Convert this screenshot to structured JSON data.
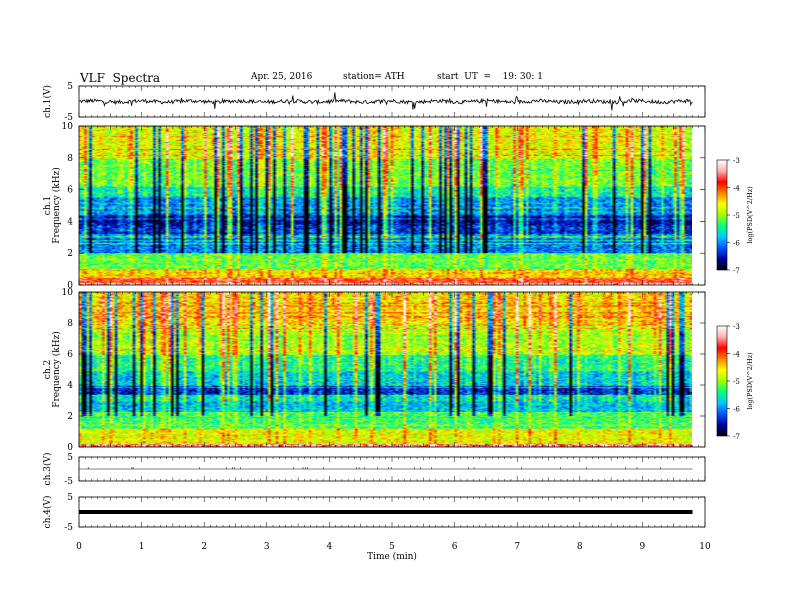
{
  "header": {
    "title": "VLF  Spectra",
    "date": "Apr. 25, 2016",
    "station": "station= ATH",
    "start": "start  UT  =    19: 30: 1"
  },
  "chart_data": [
    {
      "type": "line",
      "panel": "ch1-waveform",
      "ylabel": "ch.1(V)",
      "ytick_labels": [
        "5",
        "-5"
      ],
      "ylim": [
        -5,
        5
      ],
      "xlim": [
        0,
        10
      ],
      "baseline": 0,
      "x_end": 9.8
    },
    {
      "type": "heatmap",
      "panel": "ch1-spectrogram",
      "ylabel_top": "ch.1",
      "ylabel": "Frequency  (kHz)",
      "ytick_labels": [
        "0",
        "2",
        "4",
        "6",
        "8",
        "10"
      ],
      "ylim": [
        0,
        10
      ],
      "xlim": [
        0,
        10
      ],
      "x_end": 9.8,
      "colorbar": {
        "label": "log(PSD(V^2/Hz)",
        "tick_labels": [
          "-3",
          "-4",
          "-5",
          "-6",
          "-7"
        ],
        "range": [
          -7,
          -3
        ],
        "colors": [
          "#000000",
          "#0000a0",
          "#0050ff",
          "#00c8ff",
          "#00ff80",
          "#a0ff00",
          "#ffff00",
          "#ff8000",
          "#ff0000",
          "#ffb0b0",
          "#ffffff"
        ]
      },
      "bands": [
        {
          "from": 0,
          "to": 0.15,
          "level": -3.4
        },
        {
          "from": 0.15,
          "to": 0.5,
          "level": -4.0
        },
        {
          "from": 0.5,
          "to": 1.0,
          "level": -4.6
        },
        {
          "from": 1.0,
          "to": 2.0,
          "level": -5.3
        },
        {
          "from": 2.0,
          "to": 3.2,
          "level": -6.2
        },
        {
          "from": 3.2,
          "to": 3.8,
          "level": -6.6
        },
        {
          "from": 3.8,
          "to": 4.4,
          "level": -6.8
        },
        {
          "from": 4.4,
          "to": 5.6,
          "level": -6.3
        },
        {
          "from": 5.6,
          "to": 6.2,
          "level": -5.8
        },
        {
          "from": 6.2,
          "to": 8.0,
          "level": -5.4
        },
        {
          "from": 8.0,
          "to": 10.0,
          "level": -5.0
        }
      ]
    },
    {
      "type": "heatmap",
      "panel": "ch2-spectrogram",
      "ylabel_top": "ch.2",
      "ylabel": "Frequency  (kHz)",
      "ytick_labels": [
        "0",
        "2",
        "4",
        "6",
        "8",
        "10"
      ],
      "ylim": [
        0,
        10
      ],
      "xlim": [
        0,
        10
      ],
      "x_end": 9.8,
      "colorbar": {
        "label": "log(PSD(V^2/Hz)",
        "tick_labels": [
          "-3",
          "-4",
          "-5",
          "-6",
          "-7"
        ],
        "range": [
          -7,
          -3
        ],
        "colors": [
          "#000000",
          "#0000a0",
          "#0050ff",
          "#00c8ff",
          "#00ff80",
          "#a0ff00",
          "#ffff00",
          "#ff8000",
          "#ff0000",
          "#ffb0b0",
          "#ffffff"
        ]
      },
      "bands": [
        {
          "from": 0,
          "to": 0.2,
          "level": -3.6
        },
        {
          "from": 0.2,
          "to": 1.2,
          "level": -4.8
        },
        {
          "from": 1.2,
          "to": 2.2,
          "level": -5.4
        },
        {
          "from": 2.2,
          "to": 3.4,
          "level": -5.9
        },
        {
          "from": 3.4,
          "to": 4.0,
          "level": -6.7
        },
        {
          "from": 4.0,
          "to": 5.0,
          "level": -6.0
        },
        {
          "from": 5.0,
          "to": 6.0,
          "level": -5.7
        },
        {
          "from": 6.0,
          "to": 8.0,
          "level": -5.2
        },
        {
          "from": 8.0,
          "to": 10.0,
          "level": -4.8
        }
      ]
    },
    {
      "type": "line",
      "panel": "ch3-waveform",
      "ylabel": "ch.3(V)",
      "ytick_labels": [
        "5",
        "-5"
      ],
      "ylim": [
        -5,
        5
      ],
      "xlim": [
        0,
        10
      ],
      "baseline": 0,
      "x_end": 9.8
    },
    {
      "type": "line",
      "panel": "ch4-waveform",
      "ylabel": "ch.4(V)",
      "ytick_labels": [
        "5",
        "-5"
      ],
      "ylim": [
        -5,
        5
      ],
      "xlim": [
        0,
        10
      ],
      "baseline": 0,
      "x_end": 9.8
    }
  ],
  "xaxis": {
    "label": "Time  (min)",
    "tick_labels": [
      "0",
      "1",
      "2",
      "3",
      "4",
      "5",
      "6",
      "7",
      "8",
      "9",
      "10"
    ],
    "range": [
      0,
      10
    ]
  }
}
